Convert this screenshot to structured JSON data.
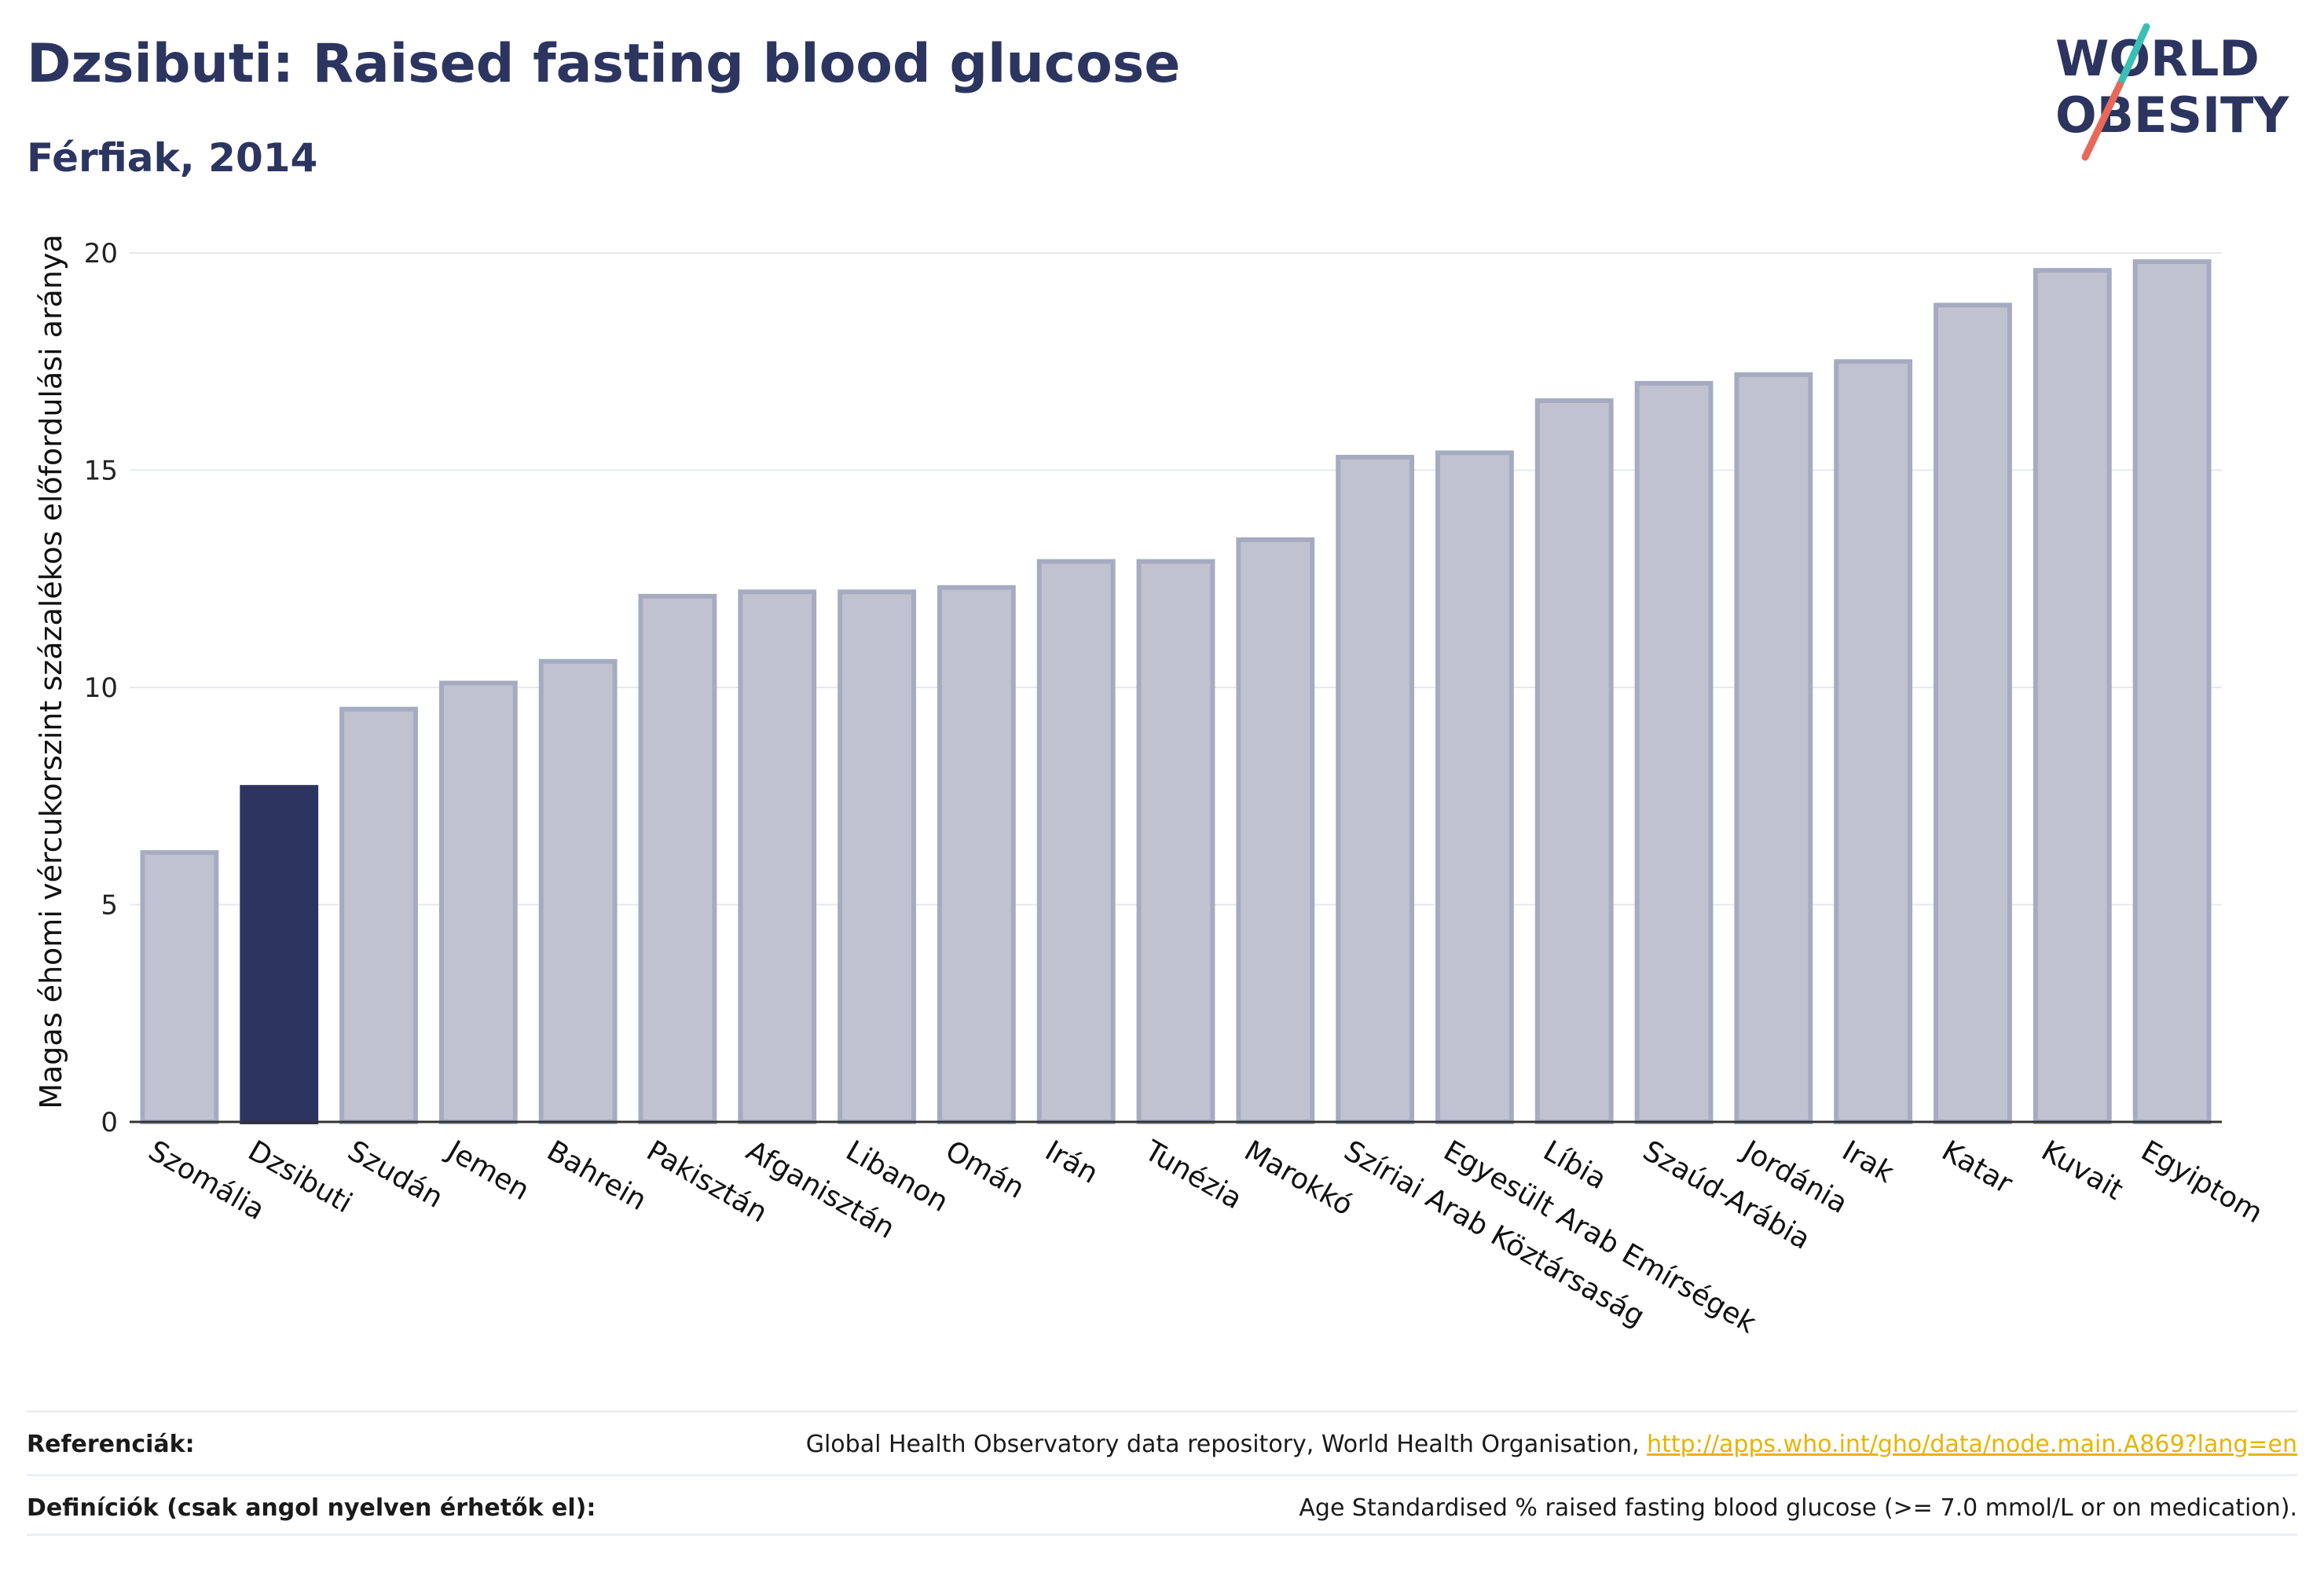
{
  "header": {
    "title": "Dzsibuti: Raised fasting blood glucose",
    "subtitle": "Férfiak, 2014"
  },
  "logo": {
    "line1": "WORLD",
    "line2": "OBESITY",
    "accent_teal": "#3bbfb4",
    "accent_red": "#e8685a",
    "color": "#2c3560"
  },
  "footer": {
    "references_label": "Referenciák:",
    "references_text": "Global Health Observatory data repository, World Health Organisation, ",
    "references_link": "http://apps.who.int/gho/data/node.main.A869?lang=en",
    "definitions_label": "Definíciók (csak angol nyelven érhetők el):",
    "definitions_text": "Age Standardised % raised fasting blood glucose (>= 7.0 mmol/L or on medication)."
  },
  "chart_data": {
    "type": "bar",
    "ylabel": "Magas éhomi vércukorszint százalékos előfordulási aránya",
    "xlabel": "",
    "ylim": [
      0,
      20
    ],
    "yticks": [
      0,
      5,
      10,
      15,
      20
    ],
    "grid": true,
    "highlight": "Dzsibuti",
    "colors": {
      "bar": "#c0c3cf",
      "bar_border": "#a6abc1",
      "highlight": "#2c3560",
      "grid": "#e6e8ee",
      "axis": "#333333"
    },
    "categories": [
      "Szomália",
      "Dzsibuti",
      "Szudán",
      "Jemen",
      "Bahrein",
      "Pakisztán",
      "Afganisztán",
      "Libanon",
      "Omán",
      "Irán",
      "Tunézia",
      "Marokkó",
      "Szíriai Arab Köztársaság",
      "Egyesült Arab Emírségek",
      "Líbia",
      "Szaúd-Arábia",
      "Jordánia",
      "Irak",
      "Katar",
      "Kuvait",
      "Egyiptom"
    ],
    "values": [
      6.2,
      7.7,
      9.5,
      10.1,
      10.6,
      12.1,
      12.2,
      12.2,
      12.3,
      12.9,
      12.9,
      13.4,
      15.3,
      15.4,
      16.6,
      17.0,
      17.2,
      17.5,
      18.8,
      19.6,
      19.8
    ]
  }
}
